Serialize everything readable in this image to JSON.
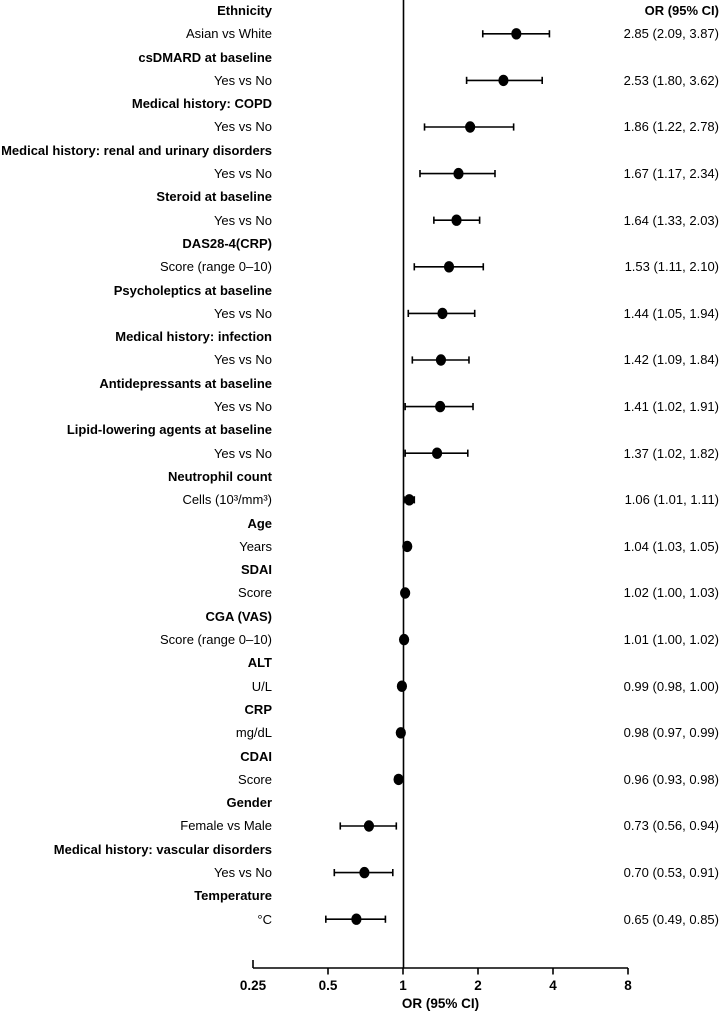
{
  "chart_data": {
    "type": "scatter",
    "variant": "forest-plot",
    "title": "",
    "value_column_header": "OR (95% CI)",
    "xlabel": "OR (95% CI)",
    "x_scale": "log2",
    "x_range": [
      0.25,
      8
    ],
    "x_ticks": [
      0.25,
      0.5,
      1,
      2,
      4,
      8
    ],
    "reference_line": 1,
    "grid": false,
    "items": [
      {
        "group": "Ethnicity",
        "label": "Asian vs White",
        "or": 2.85,
        "ci_low": 2.09,
        "ci_high": 3.87,
        "display": "2.85 (2.09, 3.87)"
      },
      {
        "group": "csDMARD at baseline",
        "label": "Yes vs No",
        "or": 2.53,
        "ci_low": 1.8,
        "ci_high": 3.62,
        "display": "2.53 (1.80, 3.62)"
      },
      {
        "group": "Medical history: COPD",
        "label": "Yes vs No",
        "or": 1.86,
        "ci_low": 1.22,
        "ci_high": 2.78,
        "display": "1.86 (1.22, 2.78)"
      },
      {
        "group": "Medical history: renal and urinary disorders",
        "label": "Yes vs No",
        "or": 1.67,
        "ci_low": 1.17,
        "ci_high": 2.34,
        "display": "1.67 (1.17, 2.34)"
      },
      {
        "group": "Steroid at baseline",
        "label": "Yes vs No",
        "or": 1.64,
        "ci_low": 1.33,
        "ci_high": 2.03,
        "display": "1.64 (1.33, 2.03)"
      },
      {
        "group": "DAS28-4(CRP)",
        "label": "Score (range 0–10)",
        "or": 1.53,
        "ci_low": 1.11,
        "ci_high": 2.1,
        "display": "1.53 (1.11, 2.10)"
      },
      {
        "group": "Psycholeptics at baseline",
        "label": "Yes vs No",
        "or": 1.44,
        "ci_low": 1.05,
        "ci_high": 1.94,
        "display": "1.44 (1.05, 1.94)"
      },
      {
        "group": "Medical history: infection",
        "label": "Yes vs No",
        "or": 1.42,
        "ci_low": 1.09,
        "ci_high": 1.84,
        "display": "1.42 (1.09, 1.84)"
      },
      {
        "group": "Antidepressants at baseline",
        "label": "Yes vs No",
        "or": 1.41,
        "ci_low": 1.02,
        "ci_high": 1.91,
        "display": "1.41 (1.02, 1.91)"
      },
      {
        "group": "Lipid-lowering agents at baseline",
        "label": "Yes vs No",
        "or": 1.37,
        "ci_low": 1.02,
        "ci_high": 1.82,
        "display": "1.37 (1.02, 1.82)"
      },
      {
        "group": "Neutrophil count",
        "label": "Cells (10³/mm³)",
        "or": 1.06,
        "ci_low": 1.01,
        "ci_high": 1.11,
        "display": "1.06 (1.01, 1.11)"
      },
      {
        "group": "Age",
        "label": "Years",
        "or": 1.04,
        "ci_low": 1.03,
        "ci_high": 1.05,
        "display": "1.04 (1.03, 1.05)"
      },
      {
        "group": "SDAI",
        "label": "Score",
        "or": 1.02,
        "ci_low": 1.0,
        "ci_high": 1.03,
        "display": "1.02 (1.00, 1.03)"
      },
      {
        "group": "CGA (VAS)",
        "label": "Score (range 0–10)",
        "or": 1.01,
        "ci_low": 1.0,
        "ci_high": 1.02,
        "display": "1.01 (1.00, 1.02)"
      },
      {
        "group": "ALT",
        "label": "U/L",
        "or": 0.99,
        "ci_low": 0.98,
        "ci_high": 1.0,
        "display": "0.99 (0.98, 1.00)"
      },
      {
        "group": "CRP",
        "label": "mg/dL",
        "or": 0.98,
        "ci_low": 0.97,
        "ci_high": 0.99,
        "display": "0.98 (0.97, 0.99)"
      },
      {
        "group": "CDAI",
        "label": "Score",
        "or": 0.96,
        "ci_low": 0.93,
        "ci_high": 0.98,
        "display": "0.96 (0.93, 0.98)"
      },
      {
        "group": "Gender",
        "label": "Female vs Male",
        "or": 0.73,
        "ci_low": 0.56,
        "ci_high": 0.94,
        "display": "0.73 (0.56, 0.94)"
      },
      {
        "group": "Medical history: vascular disorders",
        "label": "Yes vs No",
        "or": 0.7,
        "ci_low": 0.53,
        "ci_high": 0.91,
        "display": "0.70 (0.53, 0.91)"
      },
      {
        "group": "Temperature",
        "label": "°C",
        "or": 0.65,
        "ci_low": 0.49,
        "ci_high": 0.85,
        "display": "0.65 (0.49, 0.85)"
      }
    ]
  },
  "colors": {
    "marker": "#000000",
    "line": "#000000",
    "text": "#000000",
    "background": "#ffffff"
  }
}
